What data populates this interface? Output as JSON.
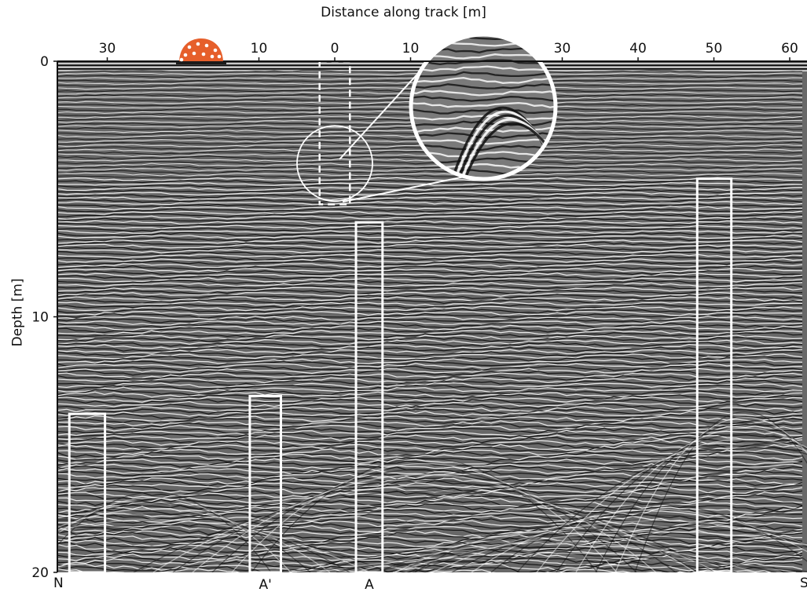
{
  "chart_data": {
    "type": "heatmap",
    "subtype": "ground-penetrating radar profile",
    "title": "",
    "xlabel": "Distance along track [m]",
    "ylabel": "Depth [m]",
    "x_ticks": [
      {
        "label": "30",
        "value": -30
      },
      {
        "label": "10",
        "value": -10
      },
      {
        "label": "0",
        "value": 0
      },
      {
        "label": "10",
        "value": 10
      },
      {
        "label": "30",
        "value": 30
      },
      {
        "label": "40",
        "value": 40
      },
      {
        "label": "50",
        "value": 50
      },
      {
        "label": "60",
        "value": 60
      }
    ],
    "y_ticks": [
      {
        "label": "0",
        "value": 0
      },
      {
        "label": "10",
        "value": 10
      },
      {
        "label": "20",
        "value": 20
      }
    ],
    "xlim": [
      -40,
      62
    ],
    "ylim": [
      0,
      20
    ],
    "y_inverted": true,
    "grid": false,
    "colormap": "grayscale",
    "direction_labels": [
      "N",
      "S"
    ],
    "annotated_columns": [
      {
        "label": "",
        "x_range": [
          -35,
          -30.3
        ],
        "depth_top": 13.8
      },
      {
        "label": "A'",
        "x_range": [
          -11.2,
          -7.1
        ],
        "depth_top": 13.1
      },
      {
        "label": "A",
        "x_range": [
          2.8,
          6.3
        ],
        "depth_top": 6.3
      },
      {
        "label": "",
        "x_range": [
          47.8,
          52.3
        ],
        "depth_top": 4.6
      }
    ],
    "highlight_region": {
      "x_range": [
        -2,
        2
      ],
      "depth_range": [
        0,
        5.6
      ]
    },
    "inset_zoom": {
      "source_center": [
        0,
        4
      ],
      "display": "circular magnification"
    }
  },
  "colors": {
    "background": "#ffffff",
    "axis": "#111111",
    "annotation": "#ffffff",
    "marker": "#e65f2b"
  },
  "marker": {
    "name": "orange-dome-marker"
  }
}
